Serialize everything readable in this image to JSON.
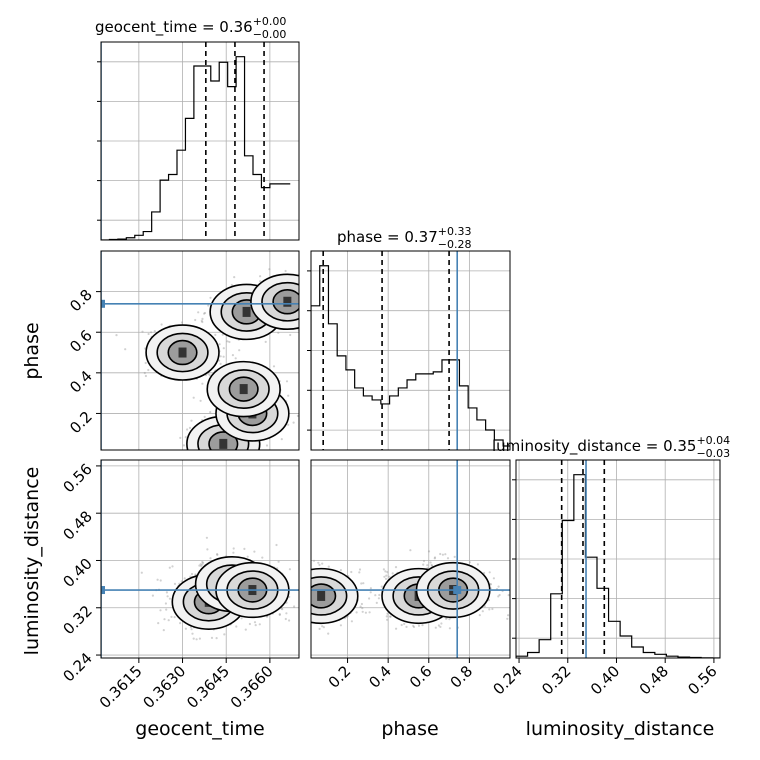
{
  "chart_data": {
    "type": "corner",
    "parameters": [
      "geocent_time",
      "phase",
      "luminosity_distance"
    ],
    "titles": {
      "geocent_time": {
        "name": "geocent_time",
        "median": "0.36",
        "plus": "+0.00",
        "minus": "−0.00"
      },
      "phase": {
        "name": "phase",
        "median": "0.37",
        "plus": "+0.33",
        "minus": "−0.28"
      },
      "luminosity_distance": {
        "name": "luminosity_distance",
        "median": "0.35",
        "plus": "+0.04",
        "minus": "−0.03"
      }
    },
    "axes": {
      "geocent_time": {
        "range": [
          0.3602,
          0.367
        ],
        "ticks": [
          0.3615,
          0.363,
          0.3645,
          0.366
        ],
        "tick_labels": [
          "0.3615",
          "0.3630",
          "0.3645",
          "0.3660"
        ],
        "label": "geocent_time"
      },
      "phase": {
        "range": [
          0.02,
          1.0
        ],
        "ticks": [
          0.2,
          0.4,
          0.6,
          0.8
        ],
        "tick_labels": [
          "0.2",
          "0.4",
          "0.6",
          "0.8"
        ],
        "label": "phase"
      },
      "luminosity_distance": {
        "range": [
          0.235,
          0.57
        ],
        "ticks": [
          0.24,
          0.32,
          0.4,
          0.48,
          0.56
        ],
        "tick_labels": [
          "0.24",
          "0.32",
          "0.40",
          "0.48",
          "0.56"
        ],
        "label": "luminosity_distance"
      }
    },
    "truth": {
      "geocent_time": 0.3602,
      "phase": 0.74,
      "luminosity_distance": 0.35
    },
    "quantiles": {
      "geocent_time": [
        0.3638,
        0.3648,
        0.3658
      ],
      "phase": [
        0.08,
        0.37,
        0.7
      ],
      "luminosity_distance": [
        0.31,
        0.345,
        0.38
      ]
    },
    "histograms": {
      "geocent_time": {
        "edges": [
          0.3602,
          0.36049,
          0.36078,
          0.36107,
          0.36136,
          0.36165,
          0.36194,
          0.36223,
          0.36252,
          0.36281,
          0.3631,
          0.36339,
          0.36368,
          0.36397,
          0.36426,
          0.36455,
          0.36484,
          0.36513,
          0.36542,
          0.36571,
          0.366,
          0.36629,
          0.36658,
          0.3667
        ],
        "counts": [
          0,
          0.3,
          0.5,
          1.2,
          2.5,
          4.5,
          15,
          32,
          35,
          48,
          65,
          93,
          93,
          85,
          95,
          82,
          98,
          45,
          35,
          28,
          30,
          30,
          30
        ]
      },
      "phase": {
        "edges": [
          0.02,
          0.063,
          0.106,
          0.149,
          0.192,
          0.235,
          0.278,
          0.321,
          0.364,
          0.407,
          0.45,
          0.493,
          0.536,
          0.579,
          0.622,
          0.665,
          0.708,
          0.751,
          0.794,
          0.837,
          0.88,
          0.923,
          0.966,
          1.0
        ],
        "counts": [
          72,
          92,
          63,
          47,
          40,
          31,
          27,
          25,
          23,
          27,
          31,
          35,
          38,
          38,
          39,
          45,
          45,
          32,
          21,
          15,
          10,
          5,
          2
        ]
      },
      "luminosity_distance": {
        "edges": [
          0.235,
          0.254,
          0.273,
          0.292,
          0.311,
          0.33,
          0.349,
          0.368,
          0.387,
          0.406,
          0.425,
          0.444,
          0.463,
          0.482,
          0.501,
          0.52,
          0.539,
          0.558,
          0.57
        ],
        "counts": [
          1,
          3,
          10,
          35,
          75,
          100,
          55,
          38,
          20,
          12,
          6,
          3,
          2,
          1,
          0.5,
          0.3,
          0.1,
          0
        ]
      }
    },
    "density": {
      "phase_vs_geocent_time": {
        "peaks": [
          {
            "x": 0.3644,
            "y": 0.05
          },
          {
            "x": 0.3654,
            "y": 0.2
          },
          {
            "x": 0.3651,
            "y": 0.32
          },
          {
            "x": 0.363,
            "y": 0.5
          },
          {
            "x": 0.3652,
            "y": 0.7
          },
          {
            "x": 0.3666,
            "y": 0.75
          }
        ]
      },
      "luminosity_distance_vs_geocent_time": {
        "peaks": [
          {
            "x": 0.3639,
            "y": 0.33
          },
          {
            "x": 0.3647,
            "y": 0.36
          },
          {
            "x": 0.3654,
            "y": 0.35
          }
        ]
      },
      "luminosity_distance_vs_phase": {
        "peaks": [
          {
            "x": 0.07,
            "y": 0.34
          },
          {
            "x": 0.55,
            "y": 0.34
          },
          {
            "x": 0.72,
            "y": 0.35
          }
        ]
      }
    }
  }
}
